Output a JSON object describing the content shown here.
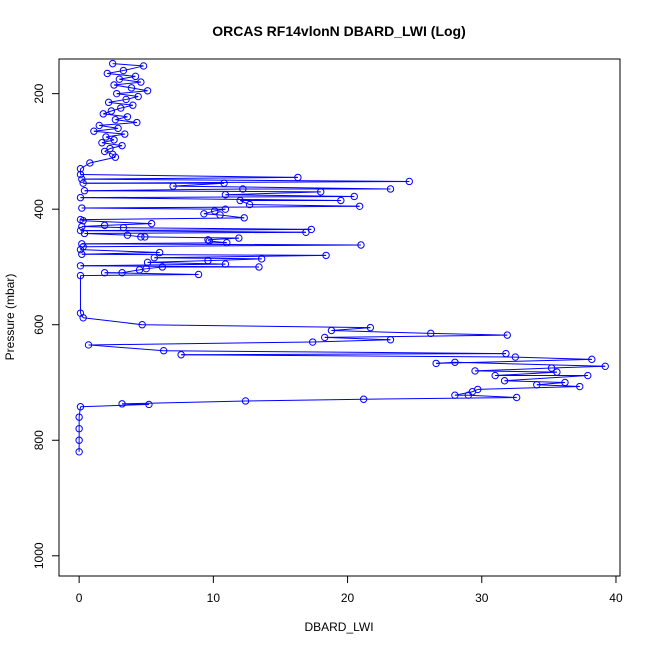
{
  "chart_data": {
    "type": "line",
    "title": "ORCAS RF14vlonN DBARD_LWI (Log)",
    "xlabel": "DBARD_LWI",
    "ylabel": "Pressure (mbar)",
    "xlim": [
      -1.5,
      40.3
    ],
    "ylim": [
      1035,
      140
    ],
    "y_reversed": true,
    "grid": false,
    "legend": "none",
    "x_ticks": [
      0,
      10,
      20,
      30,
      40
    ],
    "y_ticks": [
      200,
      400,
      600,
      800,
      1000
    ],
    "series": [
      {
        "color": "#0000ff",
        "marker": "open-circle",
        "points": [
          [
            2.5,
            148
          ],
          [
            4.8,
            152
          ],
          [
            3.3,
            160
          ],
          [
            2.1,
            165
          ],
          [
            4.2,
            170
          ],
          [
            3.0,
            175
          ],
          [
            4.6,
            180
          ],
          [
            2.6,
            185
          ],
          [
            3.9,
            190
          ],
          [
            5.1,
            195
          ],
          [
            2.8,
            200
          ],
          [
            4.4,
            205
          ],
          [
            3.5,
            210
          ],
          [
            2.2,
            215
          ],
          [
            4.0,
            220
          ],
          [
            3.1,
            225
          ],
          [
            2.4,
            230
          ],
          [
            1.8,
            235
          ],
          [
            3.6,
            240
          ],
          [
            2.7,
            245
          ],
          [
            4.3,
            250
          ],
          [
            1.5,
            255
          ],
          [
            2.9,
            260
          ],
          [
            1.1,
            265
          ],
          [
            3.4,
            270
          ],
          [
            2.0,
            275
          ],
          [
            2.6,
            280
          ],
          [
            1.7,
            285
          ],
          [
            3.2,
            290
          ],
          [
            2.3,
            295
          ],
          [
            1.9,
            300
          ],
          [
            2.5,
            305
          ],
          [
            2.7,
            310
          ],
          [
            0.8,
            320
          ],
          [
            0.1,
            330
          ],
          [
            0.1,
            340
          ],
          [
            16.3,
            345
          ],
          [
            0.2,
            348
          ],
          [
            24.6,
            352
          ],
          [
            0.3,
            355
          ],
          [
            10.8,
            355
          ],
          [
            7.0,
            360
          ],
          [
            23.2,
            365
          ],
          [
            12.2,
            365
          ],
          [
            0.4,
            368
          ],
          [
            18.0,
            370
          ],
          [
            10.9,
            375
          ],
          [
            20.5,
            378
          ],
          [
            0.1,
            380
          ],
          [
            19.5,
            385
          ],
          [
            12.0,
            385
          ],
          [
            12.7,
            392
          ],
          [
            20.9,
            395
          ],
          [
            0.2,
            398
          ],
          [
            10.9,
            400
          ],
          [
            10.1,
            403
          ],
          [
            9.3,
            408
          ],
          [
            10.5,
            410
          ],
          [
            12.3,
            415
          ],
          [
            0.1,
            418
          ],
          [
            0.3,
            420
          ],
          [
            5.4,
            425
          ],
          [
            1.9,
            428
          ],
          [
            0.2,
            430
          ],
          [
            3.3,
            432
          ],
          [
            17.3,
            435
          ],
          [
            0.1,
            437
          ],
          [
            16.9,
            440
          ],
          [
            0.4,
            442
          ],
          [
            3.6,
            445
          ],
          [
            4.6,
            448
          ],
          [
            4.9,
            448
          ],
          [
            11.9,
            450
          ],
          [
            9.6,
            453
          ],
          [
            9.7,
            455
          ],
          [
            11.0,
            458
          ],
          [
            0.2,
            460
          ],
          [
            21.0,
            462
          ],
          [
            0.3,
            465
          ],
          [
            0.1,
            470
          ],
          [
            6.0,
            475
          ],
          [
            0.2,
            478
          ],
          [
            18.4,
            480
          ],
          [
            5.6,
            484
          ],
          [
            13.6,
            486
          ],
          [
            9.6,
            489
          ],
          [
            5.1,
            492
          ],
          [
            10.9,
            495
          ],
          [
            0.1,
            498
          ],
          [
            13.4,
            500
          ],
          [
            6.2,
            500
          ],
          [
            5.0,
            503
          ],
          [
            4.5,
            505
          ],
          [
            3.2,
            510
          ],
          [
            1.9,
            510
          ],
          [
            8.9,
            513
          ],
          [
            0.1,
            515
          ],
          [
            0.1,
            580
          ],
          [
            0.3,
            588
          ],
          [
            4.7,
            600
          ],
          [
            21.7,
            605
          ],
          [
            18.8,
            610
          ],
          [
            26.2,
            615
          ],
          [
            31.9,
            618
          ],
          [
            18.3,
            622
          ],
          [
            23.2,
            626
          ],
          [
            17.4,
            630
          ],
          [
            0.7,
            635
          ],
          [
            6.3,
            645
          ],
          [
            31.8,
            650
          ],
          [
            7.6,
            652
          ],
          [
            32.5,
            656
          ],
          [
            38.2,
            660
          ],
          [
            26.6,
            667
          ],
          [
            28.0,
            665
          ],
          [
            39.2,
            672
          ],
          [
            35.2,
            675
          ],
          [
            29.5,
            680
          ],
          [
            35.6,
            682
          ],
          [
            31.0,
            688
          ],
          [
            37.9,
            688
          ],
          [
            31.7,
            697
          ],
          [
            36.2,
            700
          ],
          [
            34.1,
            704
          ],
          [
            37.3,
            707
          ],
          [
            29.7,
            712
          ],
          [
            29.3,
            716
          ],
          [
            28.0,
            722
          ],
          [
            29.0,
            722
          ],
          [
            32.6,
            726
          ],
          [
            21.2,
            729
          ],
          [
            12.4,
            732
          ],
          [
            3.2,
            737
          ],
          [
            5.2,
            738
          ],
          [
            0.1,
            742
          ],
          [
            0.0,
            760
          ],
          [
            0.0,
            780
          ],
          [
            0.0,
            800
          ],
          [
            0.0,
            820
          ]
        ]
      }
    ]
  }
}
